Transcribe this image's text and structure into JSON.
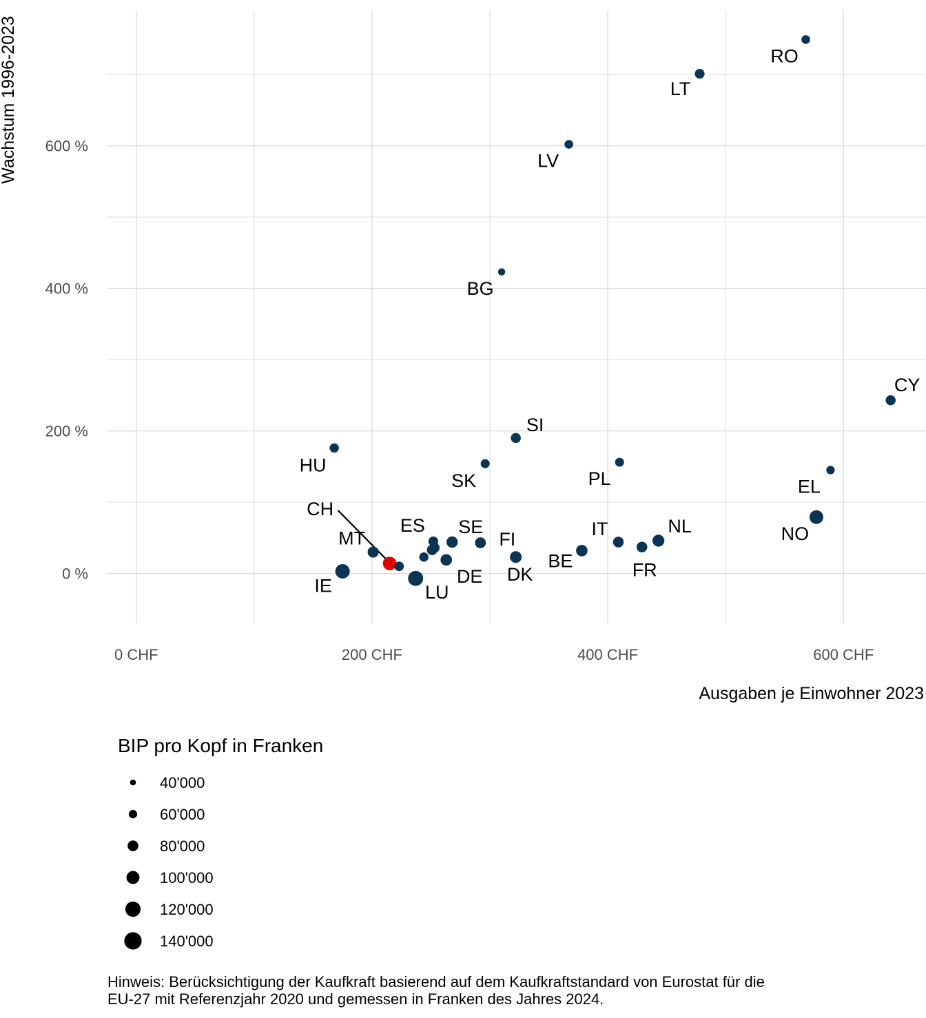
{
  "chart_data": {
    "type": "scatter",
    "xlabel": "Ausgaben je Einwohner 2023",
    "ylabel": "Wachstum 1996-2023",
    "xlim": [
      -25,
      670
    ],
    "ylim": [
      -70,
      790
    ],
    "x_ticks": [
      0,
      200,
      400,
      600
    ],
    "x_tick_labels": [
      "0 CHF",
      "200 CHF",
      "400 CHF",
      "600 CHF"
    ],
    "y_ticks": [
      0,
      200,
      400,
      600
    ],
    "y_tick_labels": [
      "0 %",
      "200 %",
      "400 %",
      "600 %"
    ],
    "grid": true,
    "colors": {
      "point": "#0b3353",
      "highlight": "#e00000",
      "grid": "#d9d9d9",
      "connector": "#000000"
    },
    "points": [
      {
        "label": "RO",
        "x": 568,
        "y": 749,
        "size": 32000
      },
      {
        "label": "LT",
        "x": 478,
        "y": 701,
        "size": 40000
      },
      {
        "label": "LV",
        "x": 367,
        "y": 602,
        "size": 32000
      },
      {
        "label": "BG",
        "x": 310,
        "y": 423,
        "size": 22000
      },
      {
        "label": "CY",
        "x": 640,
        "y": 243,
        "size": 42000
      },
      {
        "label": "SI",
        "x": 322,
        "y": 190,
        "size": 42000
      },
      {
        "label": "HU",
        "x": 168,
        "y": 176,
        "size": 36000
      },
      {
        "label": "SK",
        "x": 296,
        "y": 154,
        "size": 34000
      },
      {
        "label": "PL",
        "x": 410,
        "y": 156,
        "size": 34000
      },
      {
        "label": "EL",
        "x": 589,
        "y": 145,
        "size": 30000
      },
      {
        "label": "NO",
        "x": 577,
        "y": 79,
        "size": 80000
      },
      {
        "label": "CH",
        "x": 215,
        "y": 14,
        "size": 78000,
        "highlight": true
      },
      {
        "label": "MT",
        "x": 201,
        "y": 30,
        "size": 52000
      },
      {
        "label": "IE",
        "x": 175,
        "y": 3,
        "size": 88000
      },
      {
        "label": "LU",
        "x": 237,
        "y": -7,
        "size": 96000
      },
      {
        "label": "ES",
        "x": 252,
        "y": 45,
        "size": 40000
      },
      {
        "label": "SE",
        "x": 268,
        "y": 44,
        "size": 54000
      },
      {
        "label": "DE",
        "x": 263,
        "y": 19,
        "size": 56000
      },
      {
        "label": "FI",
        "x": 292,
        "y": 43,
        "size": 50000
      },
      {
        "label": "DK",
        "x": 322,
        "y": 23,
        "size": 58000
      },
      {
        "label": "BE",
        "x": 378,
        "y": 32,
        "size": 56000
      },
      {
        "label": "IT",
        "x": 409,
        "y": 44,
        "size": 48000
      },
      {
        "label": "FR",
        "x": 429,
        "y": 37,
        "size": 48000
      },
      {
        "label": "NL",
        "x": 443,
        "y": 46,
        "size": 60000
      },
      {
        "label": "",
        "x": 223,
        "y": 10,
        "size": 38000
      },
      {
        "label": "",
        "x": 244,
        "y": 23,
        "size": 36000
      },
      {
        "label": "",
        "x": 251,
        "y": 33,
        "size": 46000
      },
      {
        "label": "",
        "x": 253,
        "y": 36,
        "size": 44000
      }
    ],
    "legend": {
      "title": "BIP pro Kopf in Franken",
      "entries": [
        {
          "label": "40'000",
          "size": 40000
        },
        {
          "label": "60'000",
          "size": 60000
        },
        {
          "label": "80'000",
          "size": 80000
        },
        {
          "label": "100'000",
          "size": 100000
        },
        {
          "label": "120'000",
          "size": 120000
        },
        {
          "label": "140'000",
          "size": 140000
        }
      ]
    }
  },
  "note": {
    "line1": "Hinweis: Berücksichtigung der Kaufkraft basierend auf dem Kaufkraftstandard von Eurostat für die",
    "line2": "EU-27 mit Referenzjahr 2020 und gemessen in Franken des Jahres 2024."
  }
}
